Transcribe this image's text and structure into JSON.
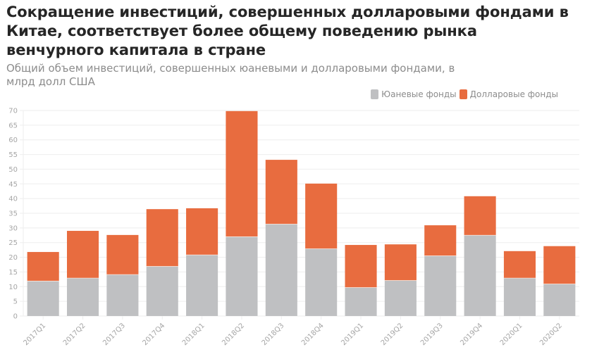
{
  "title": "Сокращение инвестиций, совершенных долларовыми фондами в Китае, соответствует более общему поведению рынка венчурного капитала в стране",
  "subtitle": "Общий объем инвестиций, совершенных юаневыми и долларовыми фондами, в млрд долл США",
  "colors": {
    "yuan": "#bfc0c2",
    "dollar": "#e86c3f",
    "grid": "#eeeeee",
    "tick": "#a6a6a6"
  },
  "chart_data": {
    "type": "bar",
    "stacked": true,
    "title": "Сокращение инвестиций, совершенных долларовыми фондами в Китае, соответствует более общему поведению рынка венчурного капитала в стране",
    "subtitle": "Общий объем инвестиций, совершенных юаневыми и долларовыми фондами, в млрд долл США",
    "xlabel": "",
    "ylabel": "",
    "ylim": [
      0,
      70
    ],
    "yticks": [
      0,
      5,
      10,
      15,
      20,
      25,
      30,
      35,
      40,
      45,
      50,
      55,
      60,
      65,
      70
    ],
    "grid": true,
    "legend_position": "top-right",
    "categories": [
      "2017Q1",
      "2017Q2",
      "2017Q3",
      "2017Q4",
      "2018Q1",
      "2018Q2",
      "2018Q3",
      "2018Q4",
      "2019Q1",
      "2019Q2",
      "2019Q3",
      "2019Q4",
      "2020Q1",
      "2020Q2"
    ],
    "series": [
      {
        "name": "Юаневые фонды",
        "color": "#bfc0c2",
        "values": [
          12.0,
          13.0,
          14.2,
          17.0,
          20.9,
          27.1,
          31.4,
          23.0,
          9.8,
          12.2,
          20.6,
          27.6,
          13.0,
          11.0
        ]
      },
      {
        "name": "Долларовые фонды",
        "color": "#e86c3f",
        "values": [
          9.8,
          16.0,
          13.4,
          19.4,
          15.8,
          42.7,
          21.8,
          22.1,
          14.4,
          12.2,
          10.3,
          13.2,
          9.1,
          12.8
        ]
      }
    ]
  }
}
